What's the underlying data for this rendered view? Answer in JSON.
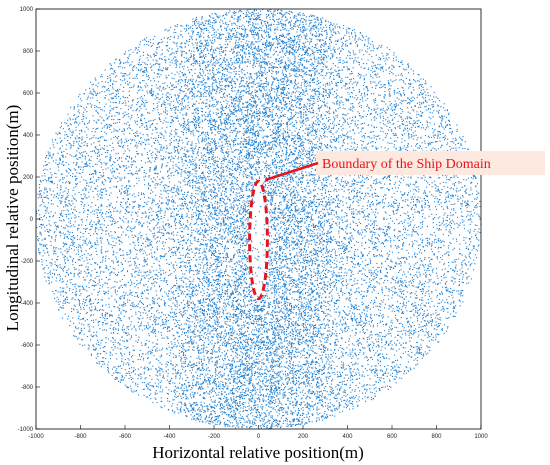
{
  "chart_data": {
    "type": "scatter",
    "title": "",
    "xlabel": "Horizontal relative position(m)",
    "ylabel": "Longitudinal relative position(m)",
    "xlim": [
      -1000,
      1000
    ],
    "ylim": [
      -1000,
      1000
    ],
    "xticks": [
      "-1000",
      "-800",
      "-600",
      "-400",
      "-200",
      "0",
      "200",
      "400",
      "600",
      "800",
      "1000"
    ],
    "yticks": [
      "1000",
      "800",
      "600",
      "400",
      "200",
      "0",
      "-200",
      "-400",
      "-600",
      "-800",
      "-1000"
    ],
    "grid": false,
    "series": [
      {
        "marker_color": "#1f7fd0",
        "description_points": {
          "region": "disc",
          "center": [
            0,
            0
          ],
          "radius": 1000,
          "approx_count": 30000,
          "density_peak_near_x": 0
        }
      }
    ],
    "annotation": {
      "label": "Boundary of the Ship Domain",
      "text_color": "#e8141d",
      "box_color": "#fde9df",
      "ellipse": {
        "center": [
          0,
          -100
        ],
        "semi_axis_x": 40,
        "semi_axis_y": 280
      }
    }
  }
}
